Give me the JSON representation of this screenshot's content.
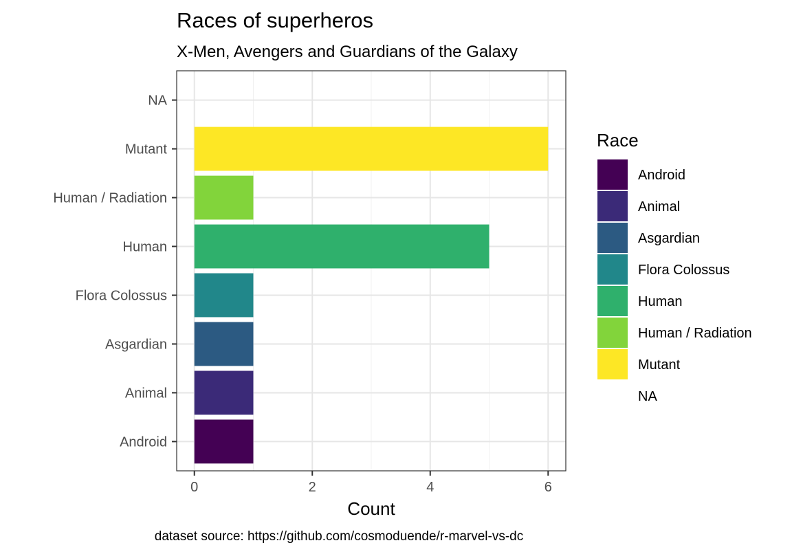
{
  "chart_data": {
    "type": "bar",
    "orientation": "horizontal",
    "title": "Races of superheros",
    "subtitle": "X-Men, Avengers and Guardians of the Galaxy",
    "xlabel": "Count",
    "ylabel": "",
    "caption": "dataset source: https://github.com/cosmoduende/r-marvel-vs-dc",
    "categories": [
      "Android",
      "Animal",
      "Asgardian",
      "Flora Colossus",
      "Human",
      "Human / Radiation",
      "Mutant",
      "NA"
    ],
    "values": [
      1,
      1,
      1,
      1,
      5,
      1,
      6,
      0
    ],
    "colors": [
      "#440154",
      "#3B2A78",
      "#2C5A82",
      "#21878A",
      "#2FB06C",
      "#82D43B",
      "#FDE725",
      "#FFFFFF"
    ],
    "xlim": [
      -0.3,
      6.3
    ],
    "x_ticks": [
      "0",
      "2",
      "4",
      "6"
    ],
    "grid": true,
    "legend": {
      "title": "Race",
      "placement": "right",
      "entries": [
        "Android",
        "Animal",
        "Asgardian",
        "Flora Colossus",
        "Human",
        "Human / Radiation",
        "Mutant",
        "NA"
      ]
    }
  }
}
